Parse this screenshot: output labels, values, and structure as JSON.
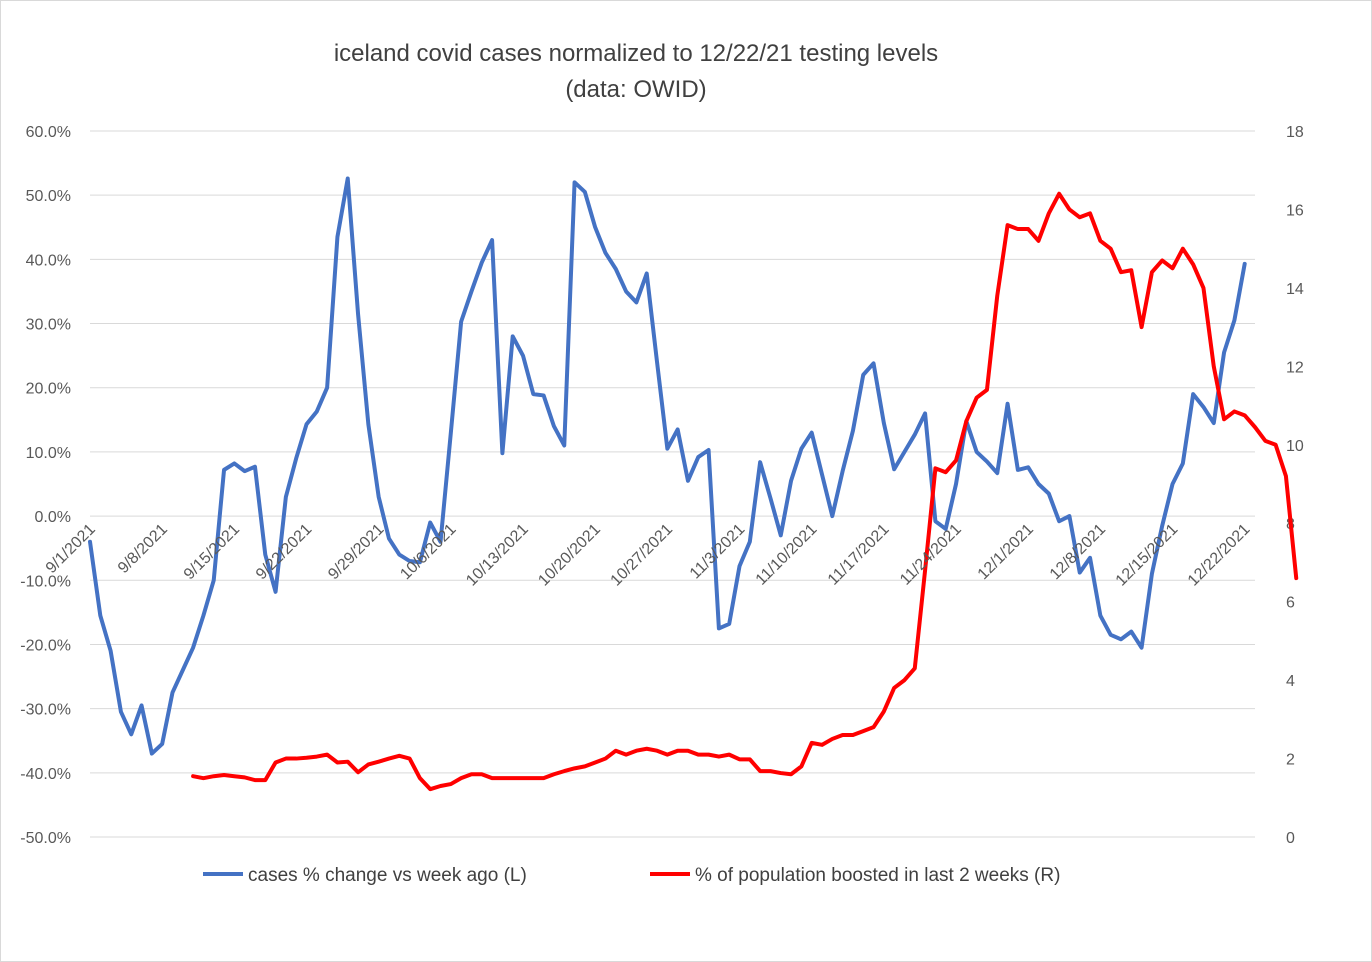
{
  "chart_data": {
    "type": "line",
    "title": "iceland covid cases normalized to 12/22/21 testing levels",
    "subtitle": "(data: OWID)",
    "x_tick_labels": [
      "9/1/2021",
      "9/8/2021",
      "9/15/2021",
      "9/22/2021",
      "9/29/2021",
      "10/6/2021",
      "10/13/2021",
      "10/20/2021",
      "10/27/2021",
      "11/3/2021",
      "11/10/2021",
      "11/17/2021",
      "11/24/2021",
      "12/1/2021",
      "12/8/2021",
      "12/15/2021",
      "12/22/2021"
    ],
    "x_range": [
      "9/1/2021",
      "12/23/2021"
    ],
    "y_left": {
      "min": -0.5,
      "max": 0.6,
      "step": 0.1,
      "labels": [
        "-50.0%",
        "-40.0%",
        "-30.0%",
        "-20.0%",
        "-10.0%",
        "0.0%",
        "10.0%",
        "20.0%",
        "30.0%",
        "40.0%",
        "50.0%",
        "60.0%"
      ]
    },
    "y_right": {
      "min": 0,
      "max": 18,
      "step": 2,
      "labels": [
        "0",
        "2",
        "4",
        "6",
        "8",
        "10",
        "12",
        "14",
        "16",
        "18"
      ]
    },
    "grid": true,
    "legend_position": "bottom",
    "series": [
      {
        "name": "cases % change vs week ago (L)",
        "axis": "left",
        "color": "#4472C4",
        "start_date": "9/1/2021",
        "values": [
          -0.04,
          -0.155,
          -0.21,
          -0.305,
          -0.34,
          -0.295,
          -0.37,
          -0.355,
          -0.275,
          -0.24,
          -0.205,
          -0.155,
          -0.1,
          0.072,
          0.082,
          0.07,
          0.077,
          -0.06,
          -0.118,
          0.03,
          0.09,
          0.143,
          0.163,
          0.2,
          0.435,
          0.526,
          0.315,
          0.143,
          0.03,
          -0.035,
          -0.06,
          -0.07,
          -0.072,
          -0.01,
          -0.04,
          0.13,
          0.303,
          0.35,
          0.395,
          0.43,
          0.098,
          0.28,
          0.25,
          0.19,
          0.188,
          0.14,
          0.11,
          0.52,
          0.505,
          0.45,
          0.41,
          0.385,
          0.35,
          0.333,
          0.378,
          0.24,
          0.105,
          0.135,
          0.055,
          0.092,
          0.103,
          -0.175,
          -0.168,
          -0.078,
          -0.04,
          0.084,
          0.028,
          -0.03,
          0.055,
          0.105,
          0.13,
          0.065,
          0.0,
          0.07,
          0.133,
          0.22,
          0.238,
          0.145,
          0.073,
          0.1,
          0.127,
          0.16,
          -0.008,
          -0.02,
          0.05,
          0.148,
          0.1,
          0.085,
          0.067,
          0.175,
          0.072,
          0.076,
          0.05,
          0.035,
          -0.008,
          0.0,
          -0.088,
          -0.065,
          -0.155,
          -0.185,
          -0.192,
          -0.18,
          -0.205,
          -0.09,
          -0.015,
          0.05,
          0.082,
          0.19,
          0.17,
          0.145,
          0.255,
          0.305,
          0.393
        ]
      },
      {
        "name": "% of population boosted in last 2 weeks (R)",
        "axis": "right",
        "color": "#FF0000",
        "start_date": "9/11/2021",
        "values": [
          1.55,
          1.5,
          1.55,
          1.58,
          1.55,
          1.52,
          1.45,
          1.45,
          1.9,
          2.0,
          2.0,
          2.02,
          2.05,
          2.1,
          1.9,
          1.92,
          1.65,
          1.85,
          1.92,
          2.0,
          2.07,
          2.0,
          1.5,
          1.22,
          1.3,
          1.35,
          1.5,
          1.6,
          1.6,
          1.5,
          1.5,
          1.5,
          1.5,
          1.5,
          1.5,
          1.6,
          1.68,
          1.75,
          1.8,
          1.9,
          2.0,
          2.2,
          2.1,
          2.2,
          2.25,
          2.2,
          2.1,
          2.2,
          2.2,
          2.1,
          2.1,
          2.05,
          2.1,
          1.98,
          1.98,
          1.68,
          1.68,
          1.63,
          1.6,
          1.8,
          2.4,
          2.35,
          2.5,
          2.6,
          2.6,
          2.7,
          2.8,
          3.2,
          3.8,
          4.0,
          4.3,
          6.8,
          9.4,
          9.3,
          9.6,
          10.6,
          11.2,
          11.4,
          13.8,
          15.6,
          15.5,
          15.5,
          15.2,
          15.9,
          16.4,
          16.0,
          15.8,
          15.9,
          15.2,
          15.0,
          14.4,
          14.45,
          13.0,
          14.4,
          14.7,
          14.5,
          15.0,
          14.6,
          14.0,
          12.0,
          10.65,
          10.85,
          10.75,
          10.45,
          10.1,
          10.0,
          9.2,
          6.6
        ]
      }
    ]
  }
}
